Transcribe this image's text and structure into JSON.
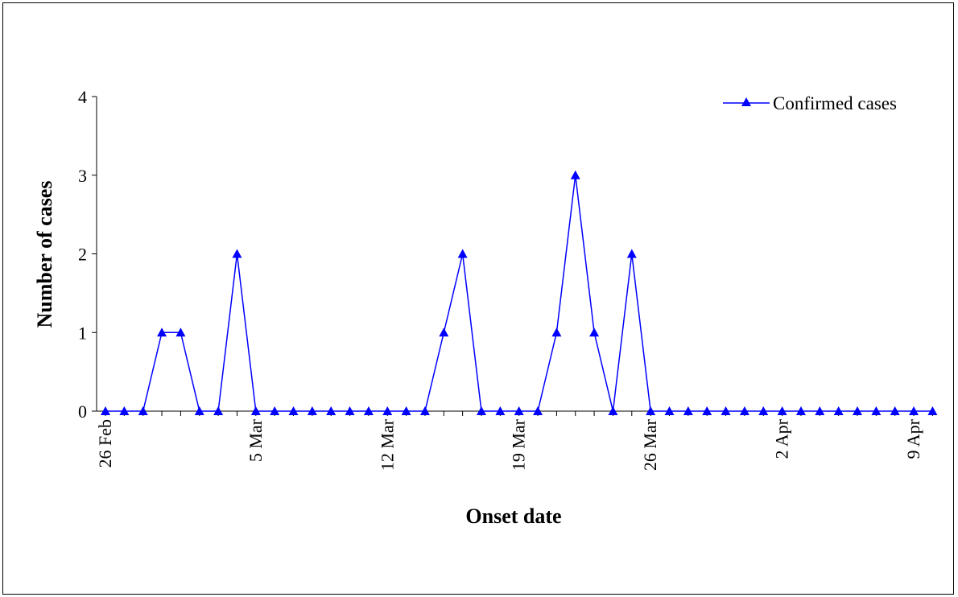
{
  "chart_data": {
    "type": "line",
    "title": "",
    "xlabel": "Onset date",
    "ylabel": "Number of cases",
    "ylim": [
      0,
      4
    ],
    "yticks": [
      0,
      1,
      2,
      3,
      4
    ],
    "x_start": "26 Feb",
    "x_tick_labels": [
      "26 Feb",
      "5 Mar",
      "12 Mar",
      "19 Mar",
      "26 Mar",
      "2 Apr",
      "9 Apr"
    ],
    "x": [
      "26 Feb",
      "27 Feb",
      "28 Feb",
      "29 Feb",
      "1 Mar",
      "2 Mar",
      "3 Mar",
      "4 Mar",
      "5 Mar",
      "6 Mar",
      "7 Mar",
      "8 Mar",
      "9 Mar",
      "10 Mar",
      "11 Mar",
      "12 Mar",
      "13 Mar",
      "14 Mar",
      "15 Mar",
      "16 Mar",
      "17 Mar",
      "18 Mar",
      "19 Mar",
      "20 Mar",
      "21 Mar",
      "22 Mar",
      "23 Mar",
      "24 Mar",
      "25 Mar",
      "26 Mar",
      "27 Mar",
      "28 Mar",
      "29 Mar",
      "30 Mar",
      "31 Mar",
      "1 Apr",
      "2 Apr",
      "3 Apr",
      "4 Apr",
      "5 Apr",
      "6 Apr",
      "7 Apr",
      "8 Apr",
      "9 Apr",
      "10 Apr"
    ],
    "series": [
      {
        "name": "Confirmed cases",
        "color": "#0000ff",
        "marker": "triangle",
        "values": [
          0,
          0,
          0,
          1,
          1,
          0,
          0,
          2,
          0,
          0,
          0,
          0,
          0,
          0,
          0,
          0,
          0,
          0,
          1,
          2,
          0,
          0,
          0,
          0,
          1,
          3,
          1,
          0,
          2,
          0,
          0,
          0,
          0,
          0,
          0,
          0,
          0,
          0,
          0,
          0,
          0,
          0,
          0,
          0,
          0
        ]
      }
    ],
    "legend_position": "top-right",
    "grid": false
  }
}
